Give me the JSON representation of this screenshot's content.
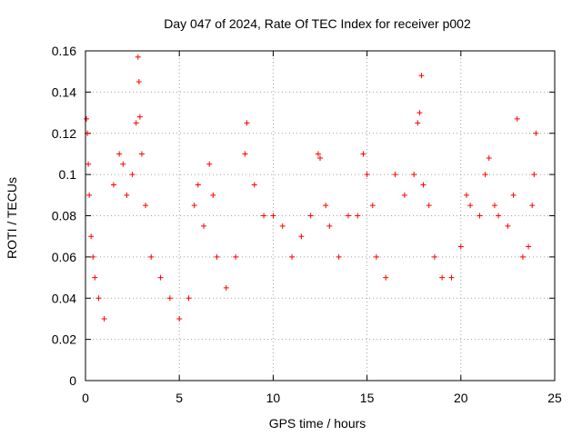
{
  "chart_data": {
    "type": "scatter",
    "title": "Day 047 of 2024, Rate Of TEC Index for receiver p002",
    "xlabel": "GPS time / hours",
    "ylabel": "ROTI / TECUs",
    "xlim": [
      0,
      25
    ],
    "ylim": [
      0,
      0.16
    ],
    "x_ticks": [
      "0",
      "5",
      "10",
      "15",
      "20",
      "25"
    ],
    "y_ticks": [
      "0",
      "0.02",
      "0.04",
      "0.06",
      "0.08",
      "0.1",
      "0.12",
      "0.14",
      "0.16"
    ],
    "grid": true,
    "marker": "+",
    "color": "#ff0000",
    "series": [
      {
        "points": [
          [
            0.05,
            0.127
          ],
          [
            0.1,
            0.12
          ],
          [
            0.15,
            0.105
          ],
          [
            0.2,
            0.09
          ],
          [
            0.3,
            0.07
          ],
          [
            0.4,
            0.06
          ],
          [
            0.5,
            0.05
          ],
          [
            0.7,
            0.04
          ],
          [
            1.0,
            0.03
          ],
          [
            1.5,
            0.095
          ],
          [
            1.8,
            0.11
          ],
          [
            2.0,
            0.105
          ],
          [
            2.2,
            0.09
          ],
          [
            2.5,
            0.1
          ],
          [
            2.7,
            0.125
          ],
          [
            2.8,
            0.157
          ],
          [
            2.85,
            0.145
          ],
          [
            2.9,
            0.128
          ],
          [
            3.0,
            0.11
          ],
          [
            3.2,
            0.085
          ],
          [
            3.5,
            0.06
          ],
          [
            4.0,
            0.05
          ],
          [
            4.5,
            0.04
          ],
          [
            5.0,
            0.03
          ],
          [
            5.5,
            0.04
          ],
          [
            5.8,
            0.085
          ],
          [
            6.0,
            0.095
          ],
          [
            6.3,
            0.075
          ],
          [
            6.6,
            0.105
          ],
          [
            6.8,
            0.09
          ],
          [
            7.0,
            0.06
          ],
          [
            7.5,
            0.045
          ],
          [
            8.0,
            0.06
          ],
          [
            8.5,
            0.11
          ],
          [
            8.6,
            0.125
          ],
          [
            9.0,
            0.095
          ],
          [
            9.5,
            0.08
          ],
          [
            10.0,
            0.08
          ],
          [
            10.5,
            0.075
          ],
          [
            11.0,
            0.06
          ],
          [
            11.5,
            0.07
          ],
          [
            12.0,
            0.08
          ],
          [
            12.4,
            0.11
          ],
          [
            12.5,
            0.108
          ],
          [
            12.8,
            0.085
          ],
          [
            13.0,
            0.075
          ],
          [
            13.5,
            0.06
          ],
          [
            14.0,
            0.08
          ],
          [
            14.5,
            0.08
          ],
          [
            14.8,
            0.11
          ],
          [
            15.0,
            0.1
          ],
          [
            15.3,
            0.085
          ],
          [
            15.5,
            0.06
          ],
          [
            16.0,
            0.05
          ],
          [
            16.5,
            0.1
          ],
          [
            17.0,
            0.09
          ],
          [
            17.5,
            0.1
          ],
          [
            17.7,
            0.125
          ],
          [
            17.8,
            0.13
          ],
          [
            17.9,
            0.148
          ],
          [
            18.0,
            0.095
          ],
          [
            18.3,
            0.085
          ],
          [
            18.6,
            0.06
          ],
          [
            19.0,
            0.05
          ],
          [
            19.5,
            0.05
          ],
          [
            20.0,
            0.065
          ],
          [
            20.3,
            0.09
          ],
          [
            20.5,
            0.085
          ],
          [
            21.0,
            0.08
          ],
          [
            21.3,
            0.1
          ],
          [
            21.5,
            0.108
          ],
          [
            21.8,
            0.085
          ],
          [
            22.0,
            0.08
          ],
          [
            22.5,
            0.075
          ],
          [
            22.8,
            0.09
          ],
          [
            23.0,
            0.127
          ],
          [
            23.3,
            0.06
          ],
          [
            23.6,
            0.065
          ],
          [
            23.8,
            0.085
          ],
          [
            23.9,
            0.1
          ],
          [
            24.0,
            0.12
          ]
        ]
      }
    ]
  }
}
